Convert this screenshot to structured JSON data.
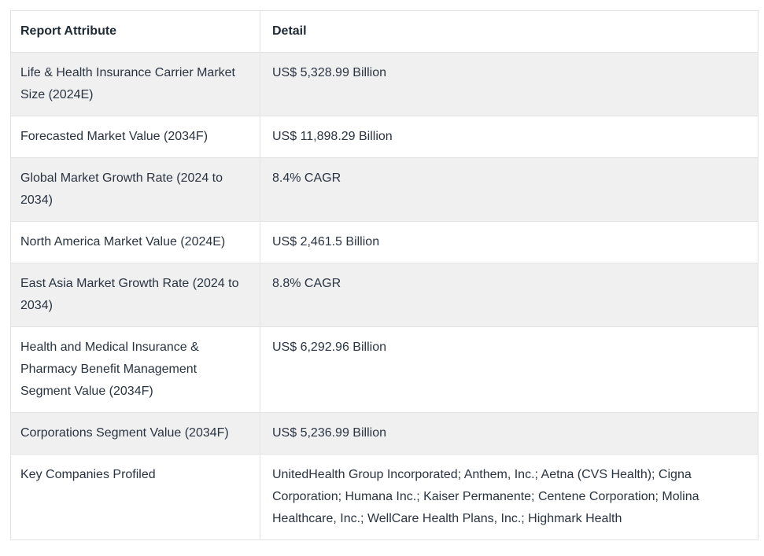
{
  "table": {
    "columns": [
      "Report Attribute",
      "Detail"
    ],
    "rows": [
      {
        "attribute": "Life & Health Insurance Carrier Market Size (2024E)",
        "detail": "US$ 5,328.99 Billion"
      },
      {
        "attribute": "Forecasted Market Value (2034F)",
        "detail": "US$ 11,898.29 Billion"
      },
      {
        "attribute": "Global Market Growth Rate (2024 to 2034)",
        "detail": "8.4% CAGR"
      },
      {
        "attribute": "North America Market Value (2024E)",
        "detail": "US$ 2,461.5 Billion"
      },
      {
        "attribute": "East Asia Market Growth Rate (2024 to 2034)",
        "detail": "8.8% CAGR"
      },
      {
        "attribute": "Health and Medical Insurance & Pharmacy Benefit Management Segment Value (2034F)",
        "detail": "US$ 6,292.96 Billion"
      },
      {
        "attribute": "Corporations Segment Value (2034F)",
        "detail": "US$ 5,236.99 Billion"
      },
      {
        "attribute": "Key Companies Profiled",
        "detail": "UnitedHealth Group Incorporated; Anthem, Inc.; Aetna (CVS Health); Cigna Corporation; Humana Inc.; Kaiser Permanente; Centene Corporation; Molina Healthcare, Inc.; WellCare Health Plans, Inc.; Highmark Health"
      }
    ],
    "colors": {
      "text": "#2a3441",
      "header_text": "#1f2a36",
      "row_alt_background": "#f0f0f1",
      "row_background": "#ffffff",
      "border": "#e2e3e7"
    }
  }
}
